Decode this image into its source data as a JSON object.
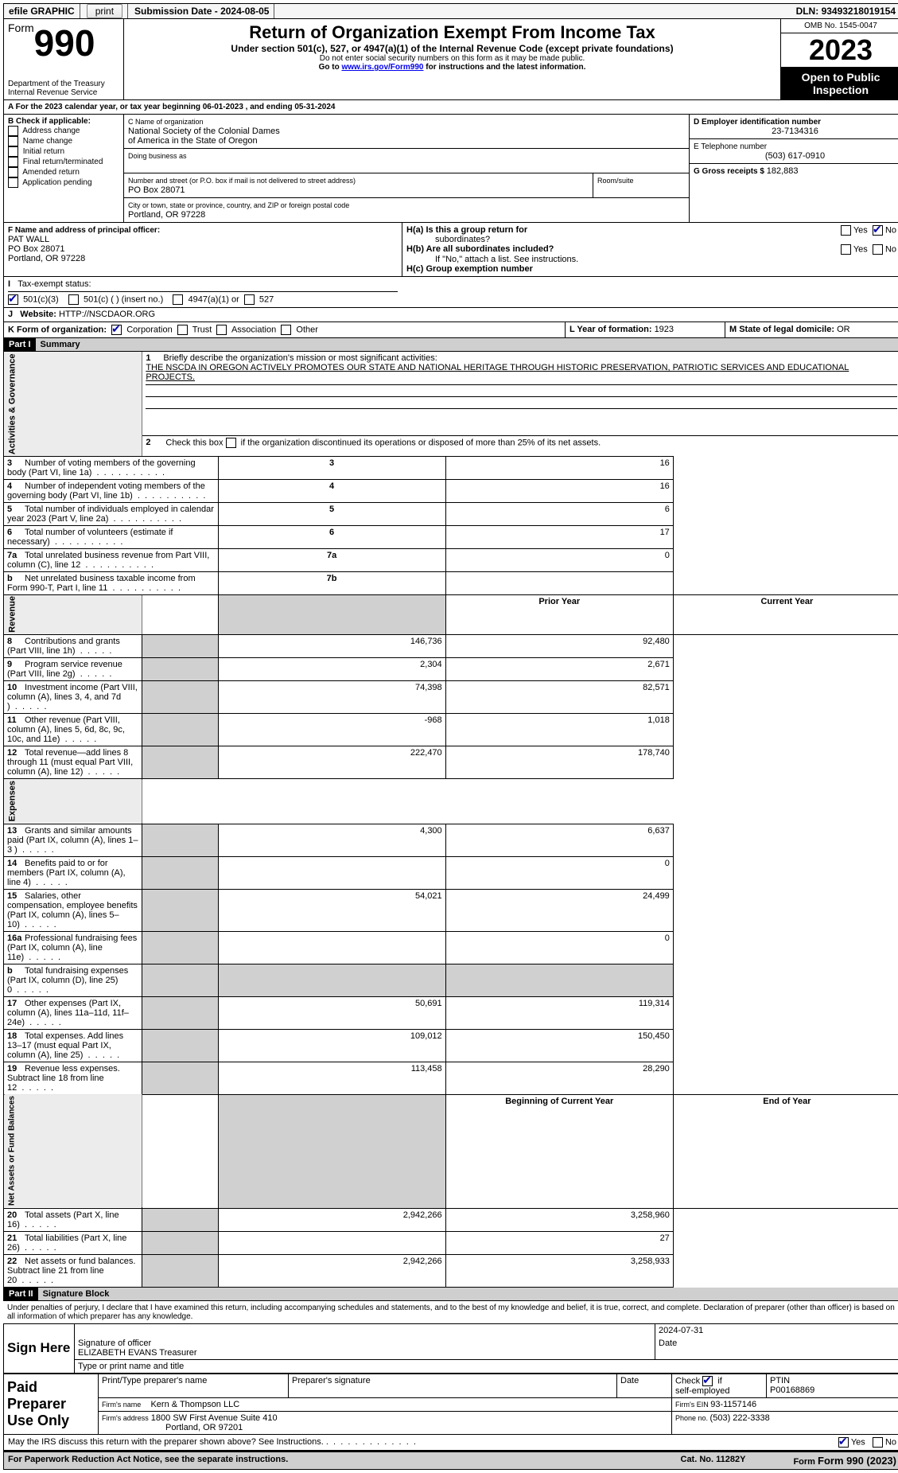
{
  "topbar": {
    "efile_label": "efile GRAPHIC",
    "print_btn": "print",
    "submission_label": "Submission Date - ",
    "submission_date": "2024-08-05",
    "dln_label": "DLN: ",
    "dln": "93493218019154"
  },
  "header": {
    "form_word": "Form",
    "form_number": "990",
    "dept1": "Department of the Treasury",
    "dept2": "Internal Revenue Service",
    "title": "Return of Organization Exempt From Income Tax",
    "subtitle": "Under section 501(c), 527, or 4947(a)(1) of the Internal Revenue Code (except private foundations)",
    "warn": "Do not enter social security numbers on this form as it may be made public.",
    "goto_pre": "Go to ",
    "goto_link": "www.irs.gov/Form990",
    "goto_post": " for instructions and the latest information.",
    "omb_label": "OMB No. 1545-0047",
    "tax_year": "2023",
    "open_pub1": "Open to Public",
    "open_pub2": "Inspection"
  },
  "lineA": {
    "pre": "A For the 2023 calendar year, or tax year beginning ",
    "begin": "06-01-2023",
    "mid": " , and ending ",
    "end": "05-31-2024"
  },
  "boxB": {
    "label": "B Check if applicable:",
    "items": [
      "Address change",
      "Name change",
      "Initial return",
      "Final return/terminated",
      "Amended return",
      "Application pending"
    ]
  },
  "boxC": {
    "name_label": "C Name of organization",
    "org_name1": "National Society of the Colonial Dames",
    "org_name2": "of America in the State of Oregon",
    "dba_label": "Doing business as",
    "street_label": "Number and street (or P.O. box if mail is not delivered to street address)",
    "room_label": "Room/suite",
    "street": "PO Box 28071",
    "city_label": "City or town, state or province, country, and ZIP or foreign postal code",
    "city": "Portland, OR  97228"
  },
  "boxD": {
    "label": "D Employer identification number",
    "value": "23-7134316"
  },
  "boxE": {
    "label": "E Telephone number",
    "value": "(503) 617-0910"
  },
  "boxG": {
    "label": "G Gross receipts $ ",
    "value": "182,883"
  },
  "boxF": {
    "label": "F  Name and address of principal officer:",
    "l1": "PAT WALL",
    "l2": "PO Box 28071",
    "l3": "Portland, OR  97228"
  },
  "boxH": {
    "ha": "H(a)  Is this a group return for",
    "ha2": "subordinates?",
    "hb": "H(b)  Are all subordinates included?",
    "hb_note": "If \"No,\" attach a list. See instructions.",
    "hc": "H(c)  Group exemption number ",
    "yes": "Yes",
    "no": "No"
  },
  "boxI": {
    "label": "I",
    "text": "Tax-exempt status:",
    "c1": "501(c)(3)",
    "c2": "501(c) (  ) (insert no.)",
    "c3": "4947(a)(1) or",
    "c4": "527"
  },
  "boxJ": {
    "label": "J",
    "text": "Website: ",
    "url": "HTTP://NSCDAOR.ORG"
  },
  "boxK": {
    "label": "K Form of organization:",
    "o1": "Corporation",
    "o2": "Trust",
    "o3": "Association",
    "o4": "Other"
  },
  "boxL": {
    "label": "L Year of formation: ",
    "value": "1923"
  },
  "boxM": {
    "label": "M State of legal domicile: ",
    "value": "OR"
  },
  "part1": {
    "label": "Part I",
    "title": "Summary"
  },
  "summary": {
    "q1_label": "1",
    "q1": "Briefly describe the organization's mission or most significant activities:",
    "q1_text": "THE NSCDA IN OREGON ACTIVELY PROMOTES OUR STATE AND NATIONAL HERITAGE THROUGH HISTORIC PRESERVATION, PATRIOTIC SERVICES AND EDUCATIONAL PROJECTS.",
    "q2_label": "2",
    "q2a": "Check this box ",
    "q2b": " if the organization discontinued its operations or disposed of more than 25% of its net assets.",
    "rows_ag": [
      {
        "num": "3",
        "text": "Number of voting members of the governing body (Part VI, line 1a)",
        "box": "3",
        "val": "16"
      },
      {
        "num": "4",
        "text": "Number of independent voting members of the governing body (Part VI, line 1b)",
        "box": "4",
        "val": "16"
      },
      {
        "num": "5",
        "text": "Total number of individuals employed in calendar year 2023 (Part V, line 2a)",
        "box": "5",
        "val": "6"
      },
      {
        "num": "6",
        "text": "Total number of volunteers (estimate if necessary)",
        "box": "6",
        "val": "17"
      },
      {
        "num": "7a",
        "text": "Total unrelated business revenue from Part VIII, column (C), line 12",
        "box": "7a",
        "val": "0"
      },
      {
        "num": "b",
        "text": "Net unrelated business taxable income from Form 990-T, Part I, line 11",
        "box": "7b",
        "val": ""
      }
    ],
    "py_header": "Prior Year",
    "cy_header": "Current Year",
    "rev_rows": [
      {
        "num": "8",
        "text": "Contributions and grants (Part VIII, line 1h)",
        "py": "146,736",
        "cy": "92,480"
      },
      {
        "num": "9",
        "text": "Program service revenue (Part VIII, line 2g)",
        "py": "2,304",
        "cy": "2,671"
      },
      {
        "num": "10",
        "text": "Investment income (Part VIII, column (A), lines 3, 4, and 7d )",
        "py": "74,398",
        "cy": "82,571"
      },
      {
        "num": "11",
        "text": "Other revenue (Part VIII, column (A), lines 5, 6d, 8c, 9c, 10c, and 11e)",
        "py": "-968",
        "cy": "1,018"
      },
      {
        "num": "12",
        "text": "Total revenue—add lines 8 through 11 (must equal Part VIII, column (A), line 12)",
        "py": "222,470",
        "cy": "178,740"
      }
    ],
    "exp_rows": [
      {
        "num": "13",
        "text": "Grants and similar amounts paid (Part IX, column (A), lines 1–3 )",
        "py": "4,300",
        "cy": "6,637"
      },
      {
        "num": "14",
        "text": "Benefits paid to or for members (Part IX, column (A), line 4)",
        "py": "",
        "cy": "0"
      },
      {
        "num": "15",
        "text": "Salaries, other compensation, employee benefits (Part IX, column (A), lines 5–10)",
        "py": "54,021",
        "cy": "24,499"
      },
      {
        "num": "16a",
        "text": "Professional fundraising fees (Part IX, column (A), line 11e)",
        "py": "",
        "cy": "0"
      },
      {
        "num": "b",
        "text": "Total fundraising expenses (Part IX, column (D), line 25) 0",
        "py": "GRAY",
        "cy": "GRAY"
      },
      {
        "num": "17",
        "text": "Other expenses (Part IX, column (A), lines 11a–11d, 11f–24e)",
        "py": "50,691",
        "cy": "119,314"
      },
      {
        "num": "18",
        "text": "Total expenses. Add lines 13–17 (must equal Part IX, column (A), line 25)",
        "py": "109,012",
        "cy": "150,450"
      },
      {
        "num": "19",
        "text": "Revenue less expenses. Subtract line 18 from line 12",
        "py": "113,458",
        "cy": "28,290"
      }
    ],
    "na_header1": "Beginning of Current Year",
    "na_header2": "End of Year",
    "na_rows": [
      {
        "num": "20",
        "text": "Total assets (Part X, line 16)",
        "py": "2,942,266",
        "cy": "3,258,960"
      },
      {
        "num": "21",
        "text": "Total liabilities (Part X, line 26)",
        "py": "",
        "cy": "27"
      },
      {
        "num": "22",
        "text": "Net assets or fund balances. Subtract line 21 from line 20",
        "py": "2,942,266",
        "cy": "3,258,933"
      }
    ],
    "vlabels": {
      "ag": "Activities & Governance",
      "rev": "Revenue",
      "exp": "Expenses",
      "na": "Net Assets or\nFund Balances"
    }
  },
  "part2": {
    "label": "Part II",
    "title": "Signature Block"
  },
  "sig": {
    "jurat": "Under penalties of perjury, I declare that I have examined this return, including accompanying schedules and statements, and to the best of my knowledge and belief, it is true, correct, and complete. Declaration of preparer (other than officer) is based on all information of which preparer has any knowledge.",
    "sign_here": "Sign Here",
    "sig_officer": "Signature of officer",
    "date_label": "Date",
    "date": "2024-07-31",
    "officer_name": "ELIZABETH EVANS Treasurer",
    "type_label": "Type or print name and title",
    "paid": "Paid Preparer Use Only",
    "h_printname": "Print/Type preparer's name",
    "h_sig": "Preparer's signature",
    "h_date": "Date",
    "h_check": "Check",
    "h_if": "if",
    "h_self": "self-employed",
    "h_ptin": "PTIN",
    "ptin": "P00168869",
    "firm_name_label": "Firm's name",
    "firm_name": "Kern & Thompson LLC",
    "firm_ein_label": "Firm's EIN ",
    "firm_ein": "93-1157146",
    "firm_addr_label": "Firm's address",
    "firm_addr1": "1800 SW First Avenue Suite 410",
    "firm_addr2": "Portland, OR  97201",
    "phone_label": "Phone no. ",
    "phone": "(503) 222-3338",
    "discuss": "May the IRS discuss this return with the preparer shown above? See Instructions.",
    "yes": "Yes",
    "no": "No"
  },
  "footer": {
    "left": "For Paperwork Reduction Act Notice, see the separate instructions.",
    "mid": "Cat. No. 11282Y",
    "right": "Form 990 (2023)"
  }
}
